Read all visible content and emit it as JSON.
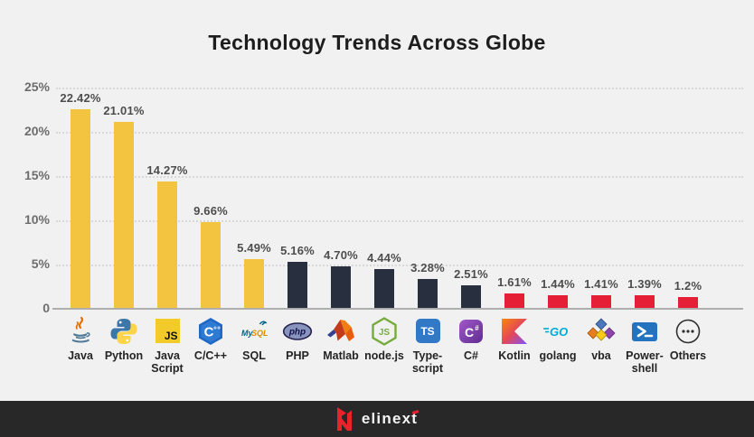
{
  "title": "Technology Trends Across Globe",
  "colors": {
    "background": "#f1f1f1",
    "footer_background": "#282828",
    "bar_yellow": "#f3c440",
    "bar_dark": "#282f3e",
    "bar_red": "#e51f35",
    "value_label": "#4d4d4d",
    "axis_label": "#6d6d6d",
    "logo_red": "#e8232e"
  },
  "chart_data": {
    "type": "bar",
    "title": "Technology Trends Across Globe",
    "xlabel": "",
    "ylabel": "",
    "ylim": [
      0,
      25
    ],
    "y_ticks": [
      "25%",
      "20%",
      "15%",
      "10%",
      "5%",
      "0"
    ],
    "grid": "horizontal-dotted",
    "legend": "none",
    "categories": [
      "Java",
      "Python",
      "Java Script",
      "C/C++",
      "SQL",
      "PHP",
      "Matlab",
      "node.js",
      "Type-script",
      "C#",
      "Kotlin",
      "golang",
      "vba",
      "Power-shell",
      "Others"
    ],
    "values": [
      22.42,
      21.01,
      14.27,
      9.66,
      5.49,
      5.16,
      4.7,
      4.44,
      3.28,
      2.51,
      1.61,
      1.44,
      1.41,
      1.39,
      1.2
    ],
    "value_labels": [
      "22.42%",
      "21.01%",
      "14.27%",
      "9.66%",
      "5.49%",
      "5.16%",
      "4.70%",
      "4.44%",
      "3.28%",
      "2.51%",
      "1.61%",
      "1.44%",
      "1.41%",
      "1.39%",
      "1.2%"
    ],
    "bar_color_groups": {
      "yellow": "#f3c440",
      "dark": "#282f3e",
      "red": "#e51f35"
    },
    "bars": [
      {
        "name": "Java",
        "label_lines": [
          "Java"
        ],
        "value": 22.42,
        "display": "22.42%",
        "group": "yellow",
        "icon": "java-icon"
      },
      {
        "name": "Python",
        "label_lines": [
          "Python"
        ],
        "value": 21.01,
        "display": "21.01%",
        "group": "yellow",
        "icon": "python-icon"
      },
      {
        "name": "Java Script",
        "label_lines": [
          "Java",
          "Script"
        ],
        "value": 14.27,
        "display": "14.27%",
        "group": "yellow",
        "icon": "javascript-icon"
      },
      {
        "name": "C/C++",
        "label_lines": [
          "C/C++"
        ],
        "value": 9.66,
        "display": "9.66%",
        "group": "yellow",
        "icon": "c-cpp-icon"
      },
      {
        "name": "SQL",
        "label_lines": [
          "SQL"
        ],
        "value": 5.49,
        "display": "5.49%",
        "group": "yellow",
        "icon": "mysql-icon"
      },
      {
        "name": "PHP",
        "label_lines": [
          "PHP"
        ],
        "value": 5.16,
        "display": "5.16%",
        "group": "dark",
        "icon": "php-icon"
      },
      {
        "name": "Matlab",
        "label_lines": [
          "Matlab"
        ],
        "value": 4.7,
        "display": "4.70%",
        "group": "dark",
        "icon": "matlab-icon"
      },
      {
        "name": "node.js",
        "label_lines": [
          "node.js"
        ],
        "value": 4.44,
        "display": "4.44%",
        "group": "dark",
        "icon": "nodejs-icon"
      },
      {
        "name": "Type-script",
        "label_lines": [
          "Type-",
          "script"
        ],
        "value": 3.28,
        "display": "3.28%",
        "group": "dark",
        "icon": "typescript-icon"
      },
      {
        "name": "C#",
        "label_lines": [
          "C#"
        ],
        "value": 2.51,
        "display": "2.51%",
        "group": "dark",
        "icon": "csharp-icon"
      },
      {
        "name": "Kotlin",
        "label_lines": [
          "Kotlin"
        ],
        "value": 1.61,
        "display": "1.61%",
        "group": "red",
        "icon": "kotlin-icon"
      },
      {
        "name": "golang",
        "label_lines": [
          "golang"
        ],
        "value": 1.44,
        "display": "1.44%",
        "group": "red",
        "icon": "golang-icon"
      },
      {
        "name": "vba",
        "label_lines": [
          "vba"
        ],
        "value": 1.41,
        "display": "1.41%",
        "group": "red",
        "icon": "vba-icon"
      },
      {
        "name": "Power-shell",
        "label_lines": [
          "Power-",
          "shell"
        ],
        "value": 1.39,
        "display": "1.39%",
        "group": "red",
        "icon": "powershell-icon"
      },
      {
        "name": "Others",
        "label_lines": [
          "Others"
        ],
        "value": 1.2,
        "display": "1.2%",
        "group": "red",
        "icon": "others-icon"
      }
    ]
  },
  "footer": {
    "brand_main": "elinex",
    "brand_last": "t"
  }
}
